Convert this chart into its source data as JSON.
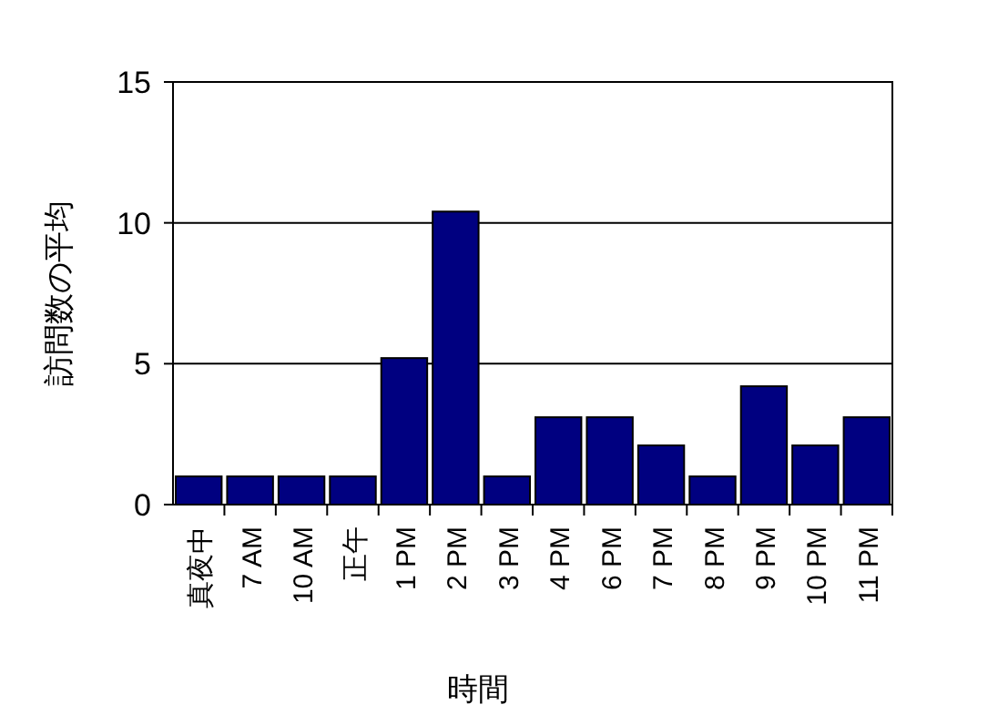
{
  "chart_data": {
    "type": "bar",
    "xlabel": "時間",
    "ylabel": "訪問数の平均",
    "categories": [
      "真夜中",
      "7 AM",
      "10 AM",
      "正午",
      "1 PM",
      "2 PM",
      "3 PM",
      "4 PM",
      "6 PM",
      "7 PM",
      "8 PM",
      "9 PM",
      "10 PM",
      "11 PM"
    ],
    "values": [
      1,
      1,
      1,
      1,
      5.2,
      10.4,
      1,
      3.1,
      3.1,
      2.1,
      1,
      4.2,
      2.1,
      3.1
    ],
    "color": "#000080",
    "ylim": [
      0,
      15
    ],
    "yticks": [
      0,
      5,
      10,
      15
    ],
    "grid": "y"
  }
}
